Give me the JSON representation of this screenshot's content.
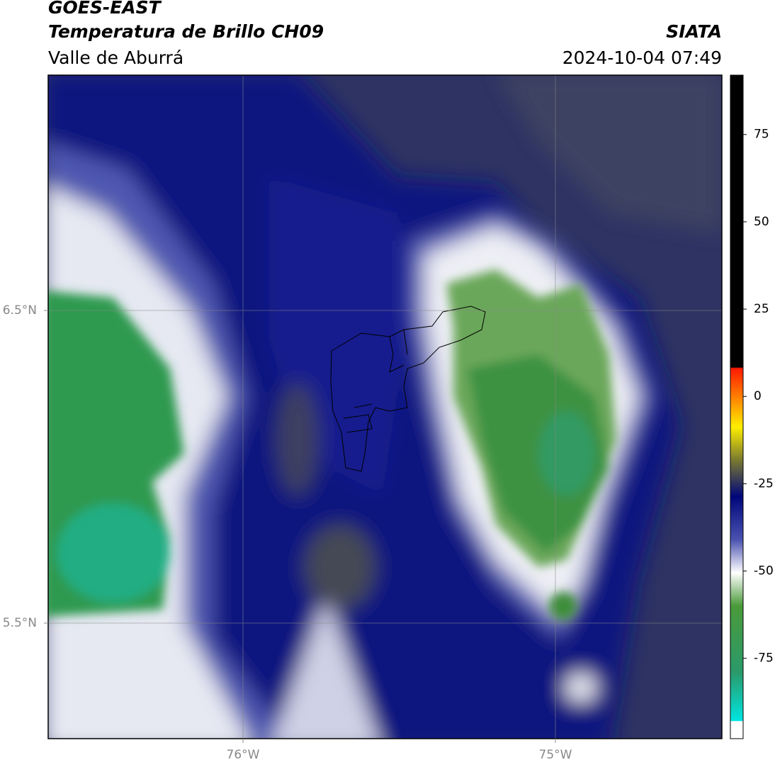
{
  "header": {
    "title": "GOES-EAST",
    "subtitle": "Temperatura de Brillo CH09",
    "source": "SIATA",
    "region": "Valle de Aburrá",
    "datetime": "2024-10-04 07:49"
  },
  "map": {
    "lat_labels": [
      "6.5°N",
      "5.5°N"
    ],
    "lon_labels": [
      "76°W",
      "75°W"
    ]
  },
  "colorbar": {
    "lim": [
      -98,
      92
    ],
    "ticks": [
      -75,
      -50,
      -25,
      0,
      25,
      50,
      75
    ]
  }
}
